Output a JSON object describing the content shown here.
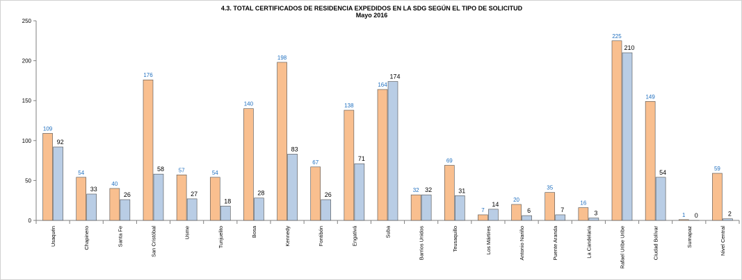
{
  "chart_data": {
    "type": "bar",
    "title": "4.3. TOTAL CERTIFICADOS DE RESIDENCIA EXPEDIDOS EN LA SDG SEGÚN EL TIPO DE SOLICITUD",
    "subtitle": "Mayo  2016",
    "xlabel": "",
    "ylabel": "",
    "ylim": [
      0,
      250
    ],
    "yticks": [
      0,
      50,
      100,
      150,
      200,
      250
    ],
    "grid": false,
    "legend": "none",
    "categories": [
      "Usaquén",
      "Chapinero",
      "Santa Fe",
      "San Cristóbal",
      "Usme",
      "Tunjuelito",
      "Bosa",
      "Kennedy",
      "Fontibón",
      "Engativá",
      "Suba",
      "Barrios Unidos",
      "Teusaquillo",
      "Los Mártires",
      "Antonio Nariño",
      "Puente Aranda",
      "La Candelaria",
      "Rafael Uribe Uribe",
      "Ciudad Bolívar",
      "Sumapaz",
      "Nivel Central"
    ],
    "series": [
      {
        "values": [
          109,
          54,
          40,
          176,
          57,
          54,
          140,
          198,
          67,
          138,
          164,
          32,
          69,
          7,
          20,
          35,
          16,
          225,
          149,
          1,
          59
        ],
        "color": "#f9bf8f",
        "label_color": "#1f6fbf"
      },
      {
        "values": [
          92,
          33,
          26,
          58,
          27,
          18,
          28,
          83,
          26,
          71,
          174,
          32,
          31,
          14,
          6,
          7,
          3,
          210,
          54,
          0,
          2
        ],
        "color": "#b9cde5",
        "label_color": "#000000"
      }
    ]
  }
}
